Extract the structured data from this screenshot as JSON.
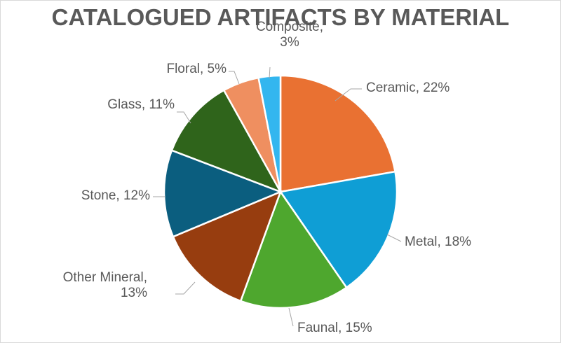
{
  "chart_data": {
    "type": "pie",
    "title": "CATALOGUED ARTIFACTS BY MATERIAL",
    "slices": [
      {
        "label": "Ceramic",
        "value": 22,
        "color": "#E97132",
        "lines": [
          "Ceramic, 22%"
        ]
      },
      {
        "label": "Metal",
        "value": 18,
        "color": "#0F9ED5",
        "lines": [
          "Metal, 18%"
        ]
      },
      {
        "label": "Faunal",
        "value": 15,
        "color": "#4EA72E",
        "lines": [
          "Faunal, 15%"
        ]
      },
      {
        "label": "Other Mineral",
        "value": 13,
        "color": "#973D0F",
        "lines": [
          "Other Mineral,",
          "13%"
        ]
      },
      {
        "label": "Stone",
        "value": 12,
        "color": "#0B5E7F",
        "lines": [
          "Stone, 12%"
        ]
      },
      {
        "label": "Glass",
        "value": 11,
        "color": "#2F641B",
        "lines": [
          "Glass, 11%"
        ]
      },
      {
        "label": "Floral",
        "value": 5,
        "color": "#EF8F60",
        "lines": [
          "Floral, 5%"
        ]
      },
      {
        "label": "Composite",
        "value": 3,
        "color": "#33B6EF",
        "lines": [
          "Composite,",
          "3%"
        ]
      }
    ],
    "legend": "none",
    "data_labels": "outside-with-leader-lines"
  }
}
